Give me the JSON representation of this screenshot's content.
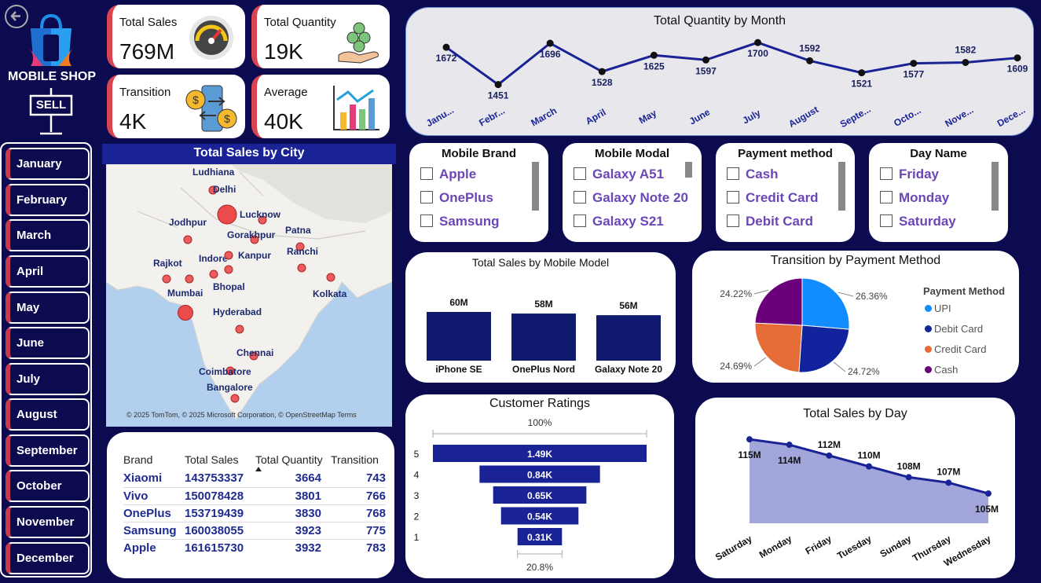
{
  "app": {
    "title": "MOBILE SHOP",
    "sell_label": "SELL"
  },
  "kpis": [
    {
      "label": "Total Sales",
      "value": "769M"
    },
    {
      "label": "Total Quantity",
      "value": "19K"
    },
    {
      "label": "Transition",
      "value": "4K"
    },
    {
      "label": "Average",
      "value": "40K"
    }
  ],
  "months": [
    "January",
    "February",
    "March",
    "April",
    "May",
    "June",
    "July",
    "August",
    "September",
    "October",
    "November",
    "December"
  ],
  "map": {
    "title": "Total Sales by City",
    "cities": [
      "Ludhiana",
      "Delhi",
      "Lucknow",
      "Jodhpur",
      "Gorakhpur",
      "Patna",
      "Rajkot",
      "Indore",
      "Kanpur",
      "Ranchi",
      "Mumbai",
      "Bhopal",
      "Kolkata",
      "Hyderabad",
      "Chennai",
      "Coimbatore",
      "Bangalore"
    ],
    "attribution": "© 2025 TomTom, © 2025 Microsoft Corporation, © OpenStreetMap  Terms"
  },
  "brand_table": {
    "headers": [
      "Brand",
      "Total Sales",
      "Total Quantity",
      "Transition"
    ],
    "rows": [
      [
        "Xiaomi",
        "143753337",
        "3664",
        "743"
      ],
      [
        "Vivo",
        "150078428",
        "3801",
        "766"
      ],
      [
        "OnePlus",
        "153719439",
        "3830",
        "768"
      ],
      [
        "Samsung",
        "160038055",
        "3923",
        "775"
      ],
      [
        "Apple",
        "161615730",
        "3932",
        "783"
      ]
    ]
  },
  "slicers": [
    {
      "title": "Mobile Brand",
      "options": [
        "Apple",
        "OnePlus",
        "Samsung"
      ]
    },
    {
      "title": "Mobile Modal",
      "options": [
        "Galaxy A51",
        "Galaxy Note 20",
        "Galaxy S21"
      ]
    },
    {
      "title": "Payment method",
      "options": [
        "Cash",
        "Credit Card",
        "Debit Card"
      ]
    },
    {
      "title": "Day Name",
      "options": [
        "Friday",
        "Monday",
        "Saturday"
      ]
    }
  ],
  "chart_data": [
    {
      "type": "line",
      "title": "Total Quantity by Month",
      "categories": [
        "Janu...",
        "Febr...",
        "March",
        "April",
        "May",
        "June",
        "July",
        "August",
        "Septe...",
        "Octo...",
        "Nove...",
        "Dece..."
      ],
      "values": [
        1672,
        1451,
        1696,
        1528,
        1625,
        1597,
        1700,
        1592,
        1521,
        1577,
        1582,
        1609
      ],
      "value_labels": [
        "1672",
        "1451",
        "1696",
        "1528",
        "1625",
        "1597",
        "1700",
        "1592",
        "1521",
        "1577",
        "1582",
        "1609"
      ],
      "color": "#1a2396"
    },
    {
      "type": "bar",
      "title": "Total Sales by Mobile Model",
      "categories": [
        "iPhone SE",
        "OnePlus Nord",
        "Galaxy Note 20"
      ],
      "values": [
        60,
        58,
        56
      ],
      "value_labels": [
        "60M",
        "58M",
        "56M"
      ],
      "color": "#0f1a6e"
    },
    {
      "type": "pie",
      "title": "Transition by Payment Method",
      "legend_title": "Payment Method",
      "categories": [
        "UPI",
        "Debit Card",
        "Credit Card",
        "Cash"
      ],
      "values": [
        26.36,
        24.72,
        24.69,
        24.22
      ],
      "value_labels": [
        "26.36%",
        "24.72%",
        "24.69%",
        "24.22%"
      ],
      "colors": [
        "#118dff",
        "#12239e",
        "#e66c37",
        "#6b007b"
      ],
      "legend_placement": "right"
    },
    {
      "type": "bar",
      "title": "Customer Ratings",
      "categories": [
        "5",
        "4",
        "3",
        "2",
        "1"
      ],
      "values": [
        1.49,
        0.84,
        0.65,
        0.54,
        0.31
      ],
      "value_labels": [
        "1.49K",
        "0.84K",
        "0.65K",
        "0.54K",
        "0.31K"
      ],
      "top_percent": "100%",
      "bottom_percent": "20.8%",
      "color": "#1a2396"
    },
    {
      "type": "area",
      "title": "Total Sales by Day",
      "categories": [
        "Saturday",
        "Monday",
        "Friday",
        "Tuesday",
        "Sunday",
        "Thursday",
        "Wednesday"
      ],
      "values": [
        115,
        114,
        112,
        110,
        108,
        107,
        105
      ],
      "value_labels": [
        "115M",
        "114M",
        "112M",
        "110M",
        "108M",
        "107M",
        "105M"
      ],
      "line_color": "#1a2396",
      "fill_color": "#a3a6db"
    }
  ]
}
